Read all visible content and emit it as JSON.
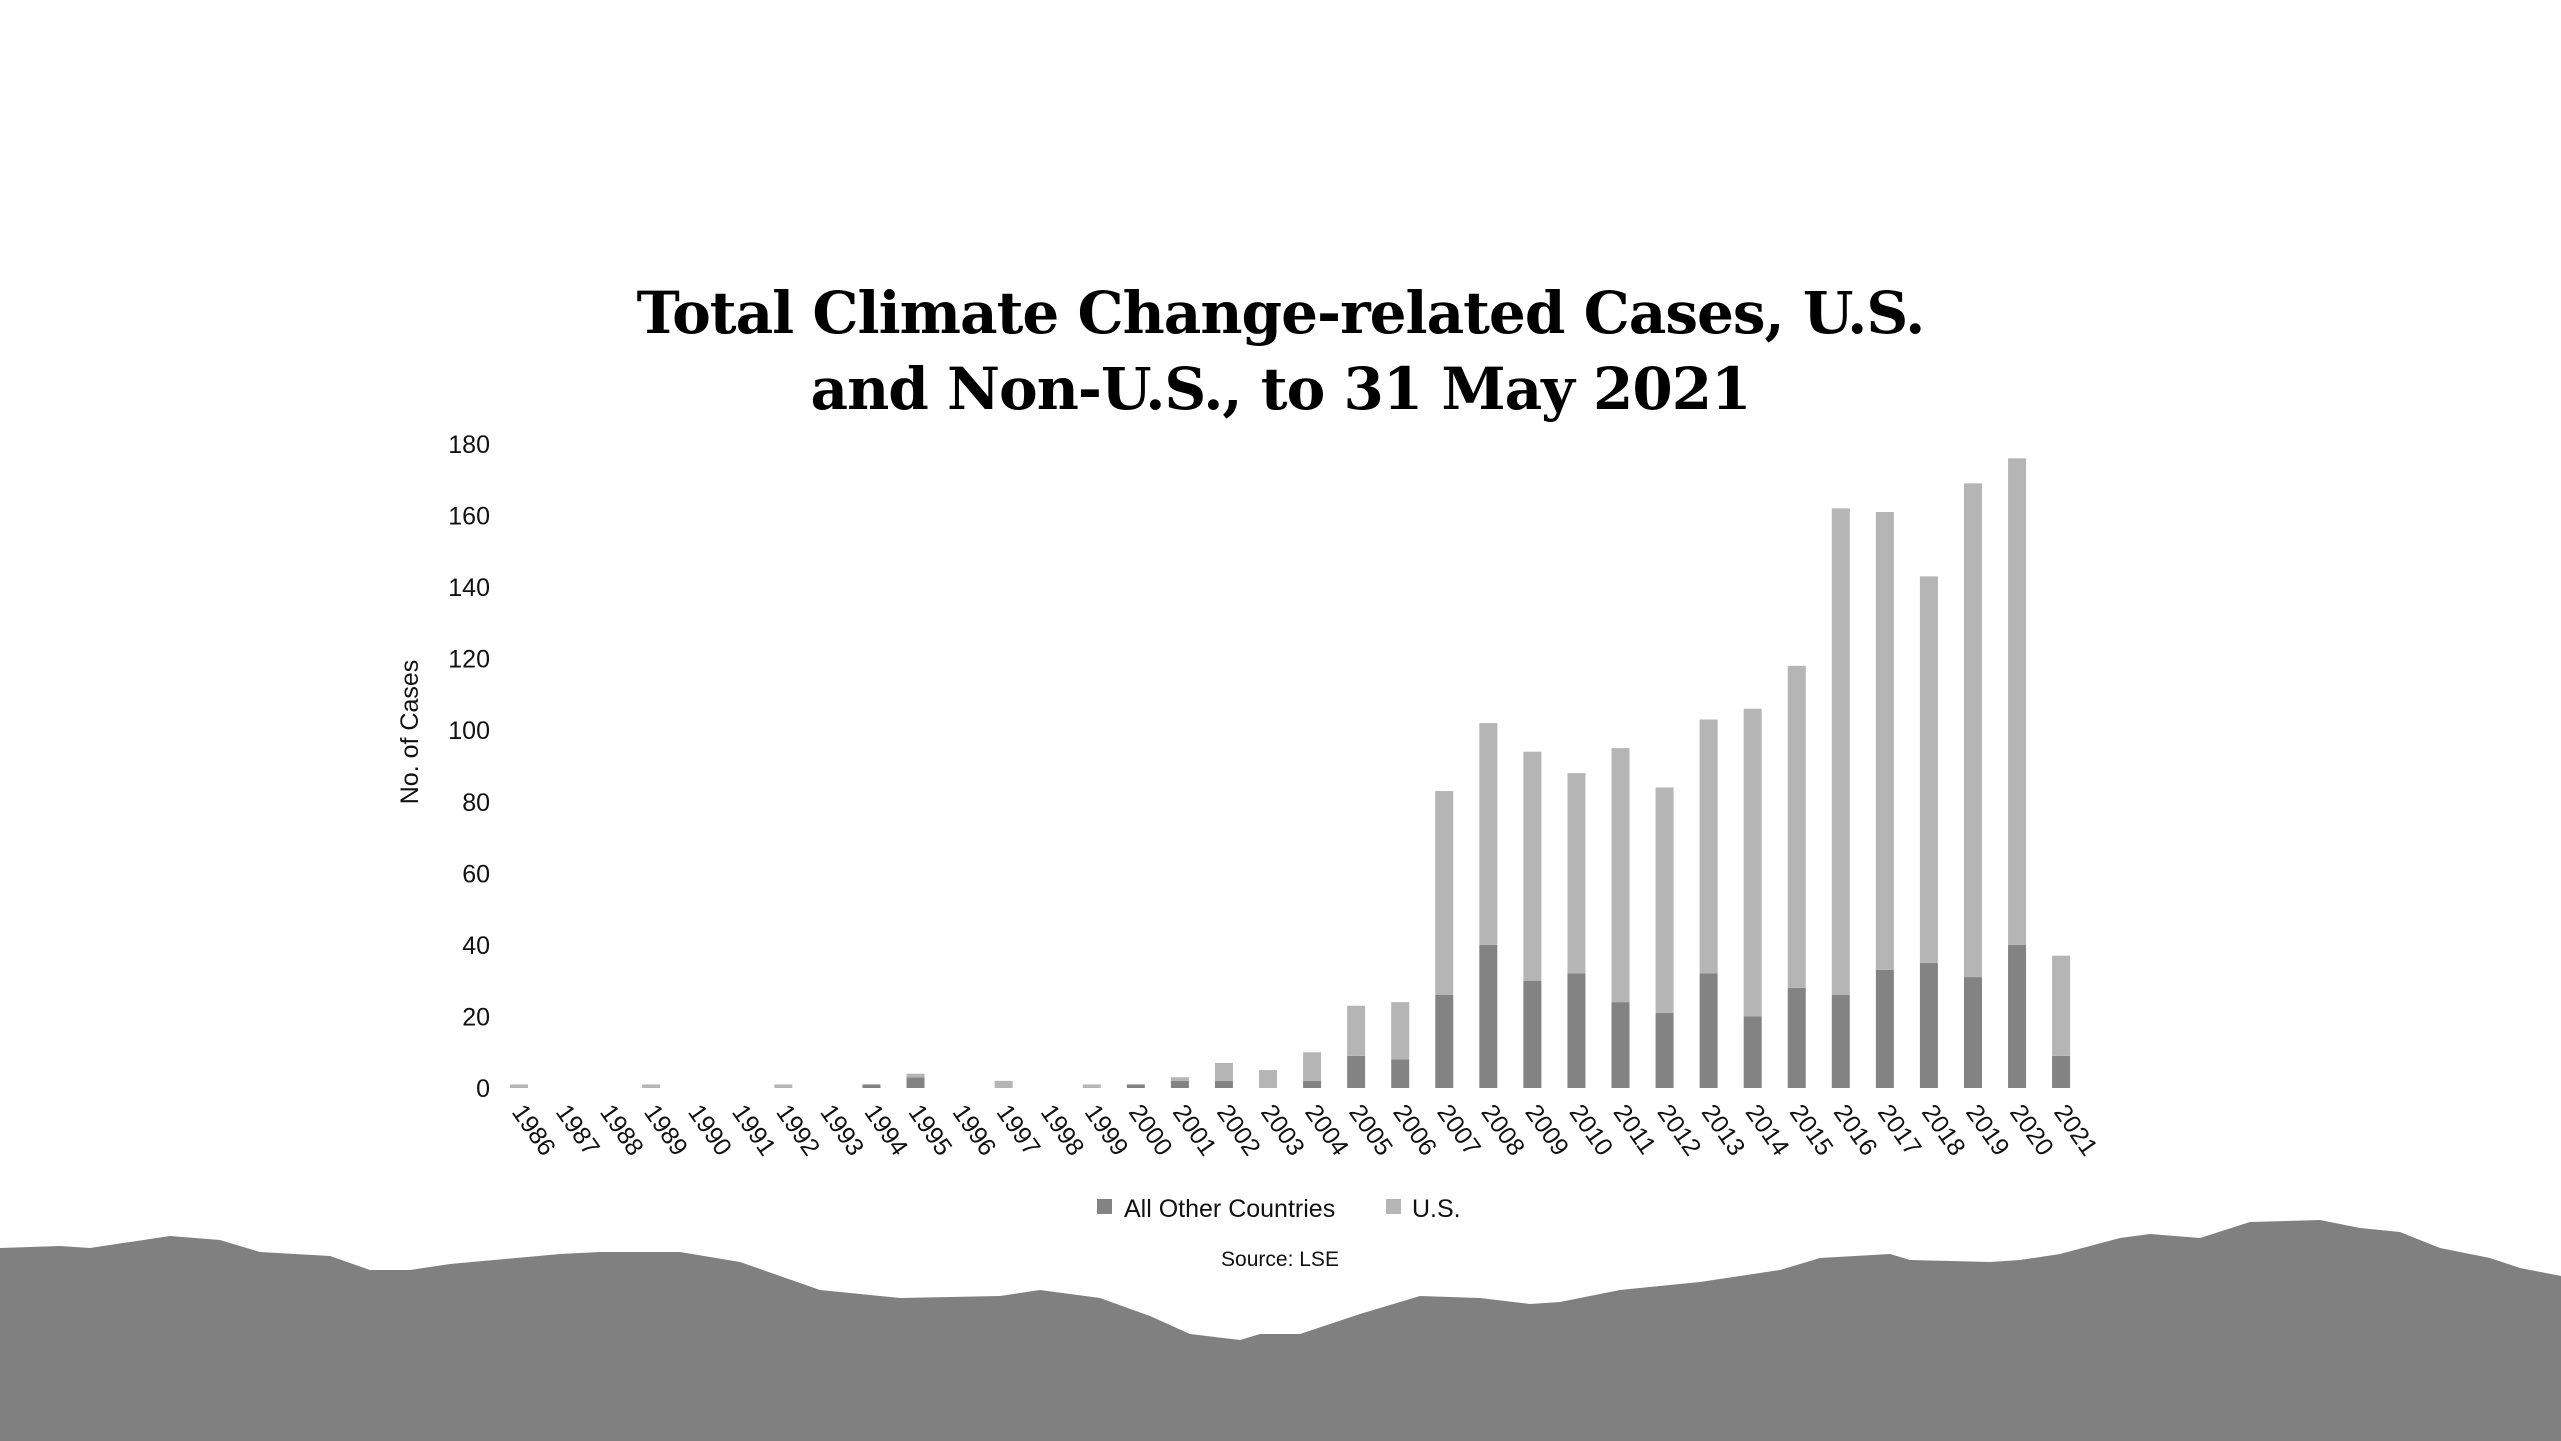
{
  "chart_data": {
    "type": "bar",
    "stacked": true,
    "title": "Total Climate Change-related Cases, U.S. and Non-U.S., to 31 May 2021",
    "title_lines": [
      "Total Climate Change-related Cases, U.S.",
      "and Non-U.S., to 31 May 2021"
    ],
    "xlabel": "",
    "ylabel": "No. of Cases",
    "ylim": [
      0,
      180
    ],
    "yticks": [
      0,
      20,
      40,
      60,
      80,
      100,
      120,
      140,
      160,
      180
    ],
    "grid": false,
    "legend_position": "bottom",
    "categories": [
      "1986",
      "1987",
      "1988",
      "1989",
      "1990",
      "1991",
      "1992",
      "1993",
      "1994",
      "1995",
      "1996",
      "1997",
      "1998",
      "1999",
      "2000",
      "2001",
      "2002",
      "2003",
      "2004",
      "2005",
      "2006",
      "2007",
      "2008",
      "2009",
      "2010",
      "2011",
      "2012",
      "2013",
      "2014",
      "2015",
      "2016",
      "2017",
      "2018",
      "2019",
      "2020",
      "2021"
    ],
    "series": [
      {
        "name": "All Other Countries",
        "color": "#838383",
        "values": [
          0,
          0,
          0,
          0,
          0,
          0,
          0,
          0,
          1,
          3,
          0,
          0,
          0,
          0,
          1,
          2,
          2,
          0,
          2,
          9,
          8,
          26,
          40,
          30,
          32,
          24,
          21,
          32,
          20,
          28,
          26,
          33,
          35,
          31,
          40,
          9
        ]
      },
      {
        "name": "U.S.",
        "color": "#b5b5b5",
        "values": [
          1,
          0,
          0,
          1,
          0,
          0,
          1,
          0,
          0,
          1,
          0,
          2,
          0,
          1,
          0,
          1,
          5,
          5,
          8,
          14,
          16,
          57,
          62,
          64,
          56,
          71,
          63,
          71,
          86,
          90,
          136,
          128,
          108,
          138,
          136,
          28
        ]
      }
    ],
    "annotation": "Source: LSE"
  },
  "colors": {
    "ground": "#808080"
  }
}
